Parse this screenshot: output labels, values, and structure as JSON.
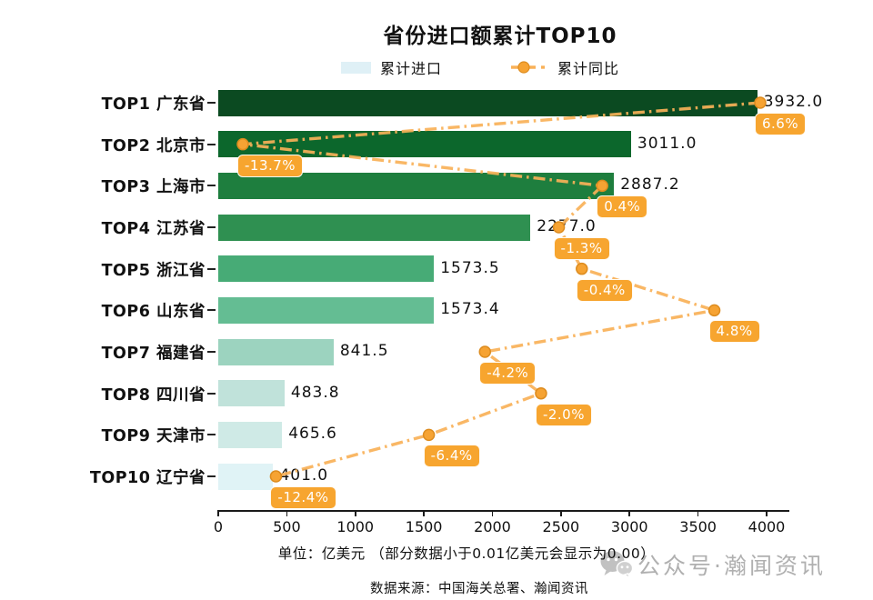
{
  "title": "省份进口额累计TOP10",
  "legend": {
    "bar": "累计进口",
    "line": "累计同比"
  },
  "chart_data": {
    "type": "bar",
    "orientation": "horizontal",
    "title": "省份进口额累计TOP10",
    "unit": "亿美元",
    "x_axis": {
      "min": 0,
      "max": 4000,
      "ticks": [
        0,
        500,
        1000,
        1500,
        2000,
        2500,
        3000,
        3500,
        4000
      ]
    },
    "series": [
      {
        "name": "累计进口",
        "type": "bar"
      },
      {
        "name": "累计同比",
        "type": "line"
      }
    ],
    "rows": [
      {
        "rank": "TOP1",
        "province": "广东省",
        "value": 3932.0,
        "value_label": "3932.0",
        "growth_pct": 6.6,
        "growth_label": "6.6%",
        "bar_color": "#0b4a21"
      },
      {
        "rank": "TOP2",
        "province": "北京市",
        "value": 3011.0,
        "value_label": "3011.0",
        "growth_pct": -13.7,
        "growth_label": "-13.7%",
        "bar_color": "#0c672c"
      },
      {
        "rank": "TOP3",
        "province": "上海市",
        "value": 2887.2,
        "value_label": "2887.2",
        "growth_pct": 0.4,
        "growth_label": "0.4%",
        "bar_color": "#1e7e3e"
      },
      {
        "rank": "TOP4",
        "province": "江苏省",
        "value": 2277.0,
        "value_label": "2277.0",
        "growth_pct": -1.3,
        "growth_label": "-1.3%",
        "bar_color": "#2f9051"
      },
      {
        "rank": "TOP5",
        "province": "浙江省",
        "value": 1573.5,
        "value_label": "1573.5",
        "growth_pct": -0.4,
        "growth_label": "-0.4%",
        "bar_color": "#47ab76"
      },
      {
        "rank": "TOP6",
        "province": "山东省",
        "value": 1573.4,
        "value_label": "1573.4",
        "growth_pct": 4.8,
        "growth_label": "4.8%",
        "bar_color": "#64bd93"
      },
      {
        "rank": "TOP7",
        "province": "福建省",
        "value": 841.5,
        "value_label": "841.5",
        "growth_pct": -4.2,
        "growth_label": "-4.2%",
        "bar_color": "#9cd3bf"
      },
      {
        "rank": "TOP8",
        "province": "四川省",
        "value": 483.8,
        "value_label": "483.8",
        "growth_pct": -2.0,
        "growth_label": "-2.0%",
        "bar_color": "#c0e2da"
      },
      {
        "rank": "TOP9",
        "province": "天津市",
        "value": 465.6,
        "value_label": "465.6",
        "growth_pct": -6.4,
        "growth_label": "-6.4%",
        "bar_color": "#cfeae6"
      },
      {
        "rank": "TOP10",
        "province": "辽宁省",
        "value": 401.0,
        "value_label": "401.0",
        "growth_pct": -12.4,
        "growth_label": "-12.4%",
        "bar_color": "#e0f3f6"
      }
    ],
    "colors": {
      "line": "#f9b158",
      "marker": "#f6a333",
      "marker_stroke": "#dd8c1f",
      "label_bg": "#f7a52f",
      "legend_swatch": "#dff0f6"
    }
  },
  "footer": {
    "unit_note": "单位：亿美元 （部分数据小于0.01亿美元会显示为0.00）",
    "source": "数据来源：中国海关总署、瀚闻资讯"
  },
  "watermark": {
    "icon": "wechat-bubbles-icon",
    "text": "公众号·瀚闻资讯"
  }
}
